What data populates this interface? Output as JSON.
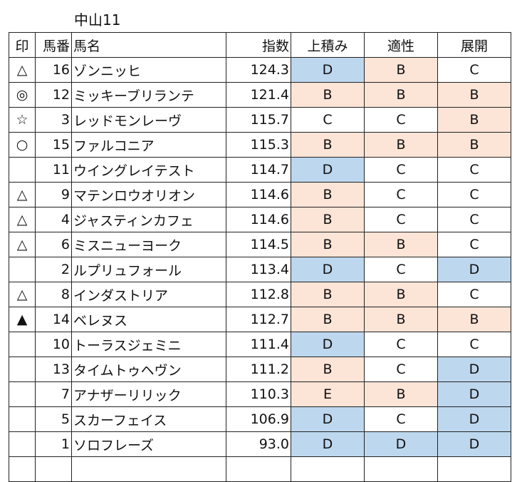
{
  "title": "中山11",
  "headers": [
    "印",
    "馬番",
    "馬名",
    "指数",
    "上積み",
    "適性",
    "展開"
  ],
  "colors": {
    "blue": "#bdd7ee",
    "peach": "#fce4d6"
  },
  "rows": [
    [
      "△",
      "16",
      "ゾンニッヒ",
      "124.3",
      "D",
      "B",
      "C"
    ],
    [
      "◎",
      "12",
      "ミッキーブリランテ",
      "121.4",
      "B",
      "B",
      "B"
    ],
    [
      "☆",
      "3",
      "レッドモンレーヴ",
      "115.7",
      "C",
      "C",
      "B"
    ],
    [
      "○",
      "15",
      "ファルコニア",
      "115.3",
      "B",
      "B",
      "B"
    ],
    [
      "",
      "11",
      "ウイングレイテスト",
      "114.7",
      "D",
      "C",
      "C"
    ],
    [
      "△",
      "9",
      "マテンロウオリオン",
      "114.6",
      "B",
      "C",
      "C"
    ],
    [
      "△",
      "4",
      "ジャスティンカフェ",
      "114.6",
      "B",
      "C",
      "C"
    ],
    [
      "△",
      "6",
      "ミスニューヨーク",
      "114.5",
      "B",
      "B",
      "C"
    ],
    [
      "",
      "2",
      "ルプリュフォール",
      "113.4",
      "D",
      "C",
      "D"
    ],
    [
      "△",
      "8",
      "インダストリア",
      "112.8",
      "B",
      "B",
      "C"
    ],
    [
      "▲",
      "14",
      "ベレヌス",
      "112.7",
      "B",
      "B",
      "B"
    ],
    [
      "",
      "10",
      "トーラスジェミニ",
      "111.4",
      "D",
      "C",
      "C"
    ],
    [
      "",
      "13",
      "タイムトゥヘヴン",
      "111.2",
      "B",
      "C",
      "D"
    ],
    [
      "",
      "7",
      "アナザーリリック",
      "110.3",
      "E",
      "B",
      "D"
    ],
    [
      "",
      "5",
      "スカーフェイス",
      "106.9",
      "D",
      "C",
      "D"
    ],
    [
      "",
      "1",
      "ソロフレーズ",
      "93.0",
      "D",
      "D",
      "D"
    ],
    [
      "",
      "",
      "",
      "",
      "",
      "",
      ""
    ]
  ]
}
